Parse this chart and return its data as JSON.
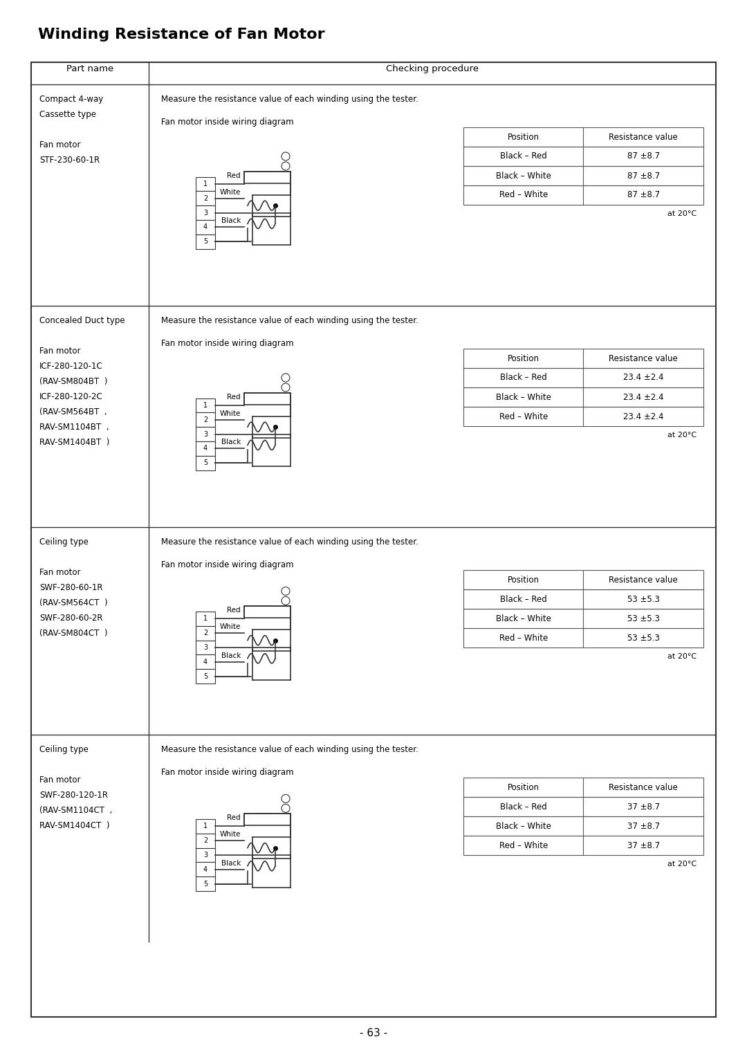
{
  "title": "Winding Resistance of Fan Motor",
  "page_number": "- 63 -",
  "table_header": [
    "Part name",
    "Checking procedure"
  ],
  "rows": [
    {
      "part_name": [
        "Compact 4-way",
        "Cassette type",
        "",
        "Fan motor",
        "STF-230-60-1R"
      ],
      "measure_text": "Measure the resistance value of each winding using the tester.",
      "diagram_label": "Fan motor inside wiring diagram",
      "positions": [
        "Black – Red",
        "Black – White",
        "Red – White"
      ],
      "resistances": [
        "87 ±8.7",
        "87 ±8.7",
        "87 ±8.7"
      ],
      "temp_note": "at 20°C"
    },
    {
      "part_name": [
        "Concealed Duct type",
        "",
        "Fan motor",
        "ICF-280-120-1C",
        "(RAV-SM804BT  )",
        "ICF-280-120-2C",
        "(RAV-SM564BT  ,",
        "RAV-SM1104BT  ,",
        "RAV-SM1404BT  )"
      ],
      "measure_text": "Measure the resistance value of each winding using the tester.",
      "diagram_label": "Fan motor inside wiring diagram",
      "positions": [
        "Black – Red",
        "Black – White",
        "Red – White"
      ],
      "resistances": [
        "23.4 ±2.4",
        "23.4 ±2.4",
        "23.4 ±2.4"
      ],
      "temp_note": "at 20°C"
    },
    {
      "part_name": [
        "Ceiling type",
        "",
        "Fan motor",
        "SWF-280-60-1R",
        "(RAV-SM564CT  )",
        "SWF-280-60-2R",
        "(RAV-SM804CT  )"
      ],
      "measure_text": "Measure the resistance value of each winding using the tester.",
      "diagram_label": "Fan motor inside wiring diagram",
      "positions": [
        "Black – Red",
        "Black – White",
        "Red – White"
      ],
      "resistances": [
        "53 ±5.3",
        "53 ±5.3",
        "53 ±5.3"
      ],
      "temp_note": "at 20°C"
    },
    {
      "part_name": [
        "Ceiling type",
        "",
        "Fan motor",
        "SWF-280-120-1R",
        "(RAV-SM1104CT  ,",
        "RAV-SM1404CT  )"
      ],
      "measure_text": "Measure the resistance value of each winding using the tester.",
      "diagram_label": "Fan motor inside wiring diagram",
      "positions": [
        "Black – Red",
        "Black – White",
        "Red – White"
      ],
      "resistances": [
        "37 ±8.7",
        "37 ±8.7",
        "37 ±8.7"
      ],
      "temp_note": "at 20°C"
    }
  ],
  "bg_color": "#ffffff",
  "text_color": "#000000",
  "line_color": "#555555",
  "header_bg": "#f0f0f0"
}
